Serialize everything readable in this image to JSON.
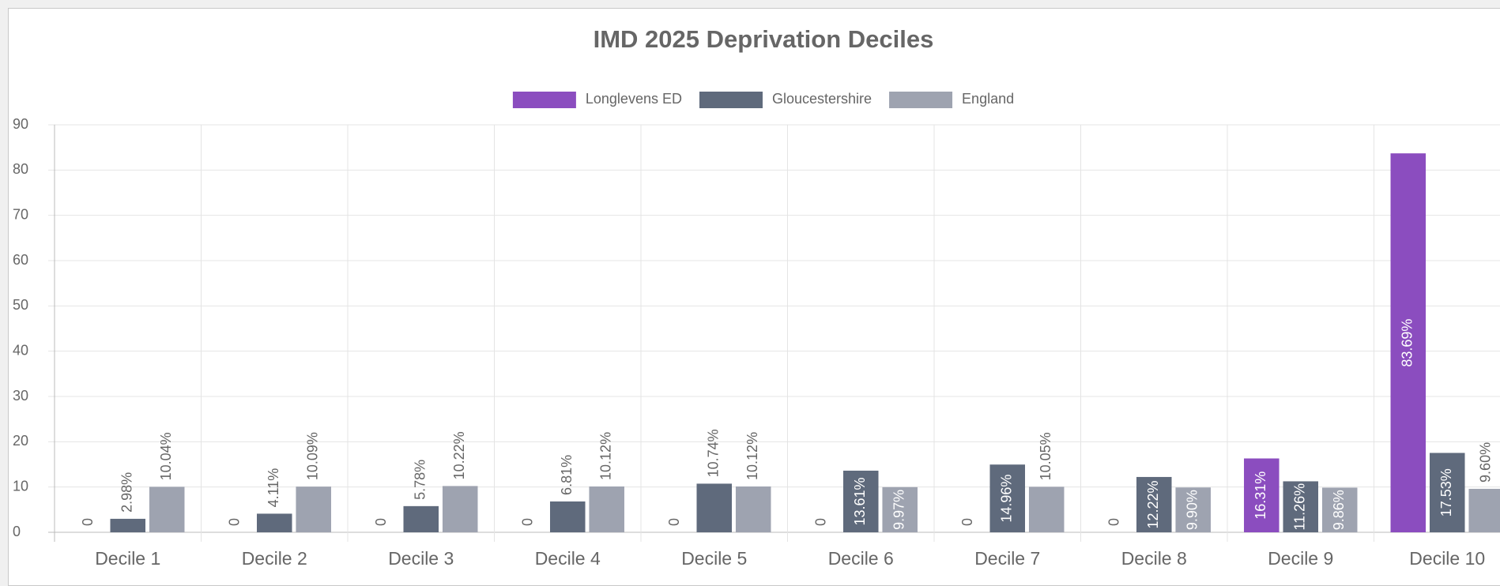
{
  "chart_data": {
    "type": "bar",
    "title": "IMD 2025 Deprivation Deciles",
    "categories": [
      "Decile 1",
      "Decile 2",
      "Decile 3",
      "Decile 4",
      "Decile 5",
      "Decile 6",
      "Decile 7",
      "Decile 8",
      "Decile 9",
      "Decile 10"
    ],
    "series": [
      {
        "name": "Longlevens ED",
        "color": "#8b4dbf",
        "values": [
          0,
          0,
          0,
          0,
          0,
          0,
          0,
          0,
          16.31,
          83.69
        ],
        "value_labels": [
          "0",
          "0",
          "0",
          "0",
          "0",
          "0",
          "0",
          "0",
          "16.31%",
          "83.69%"
        ]
      },
      {
        "name": "Gloucestershire",
        "color": "#5f6a7c",
        "values": [
          2.98,
          4.11,
          5.78,
          6.81,
          10.74,
          13.61,
          14.96,
          12.22,
          11.26,
          17.53
        ],
        "value_labels": [
          "2.98%",
          "4.11%",
          "5.78%",
          "6.81%",
          "10.74%",
          "13.61%",
          "14.96%",
          "12.22%",
          "11.26%",
          "17.53%"
        ]
      },
      {
        "name": "England",
        "color": "#9ea3b0",
        "values": [
          10.04,
          10.09,
          10.22,
          10.12,
          10.12,
          9.97,
          10.05,
          9.9,
          9.86,
          9.6
        ],
        "value_labels": [
          "10.04%",
          "10.09%",
          "10.22%",
          "10.12%",
          "10.12%",
          "9.97%",
          "10.05%",
          "9.90%",
          "9.86%",
          "9.60%"
        ]
      }
    ],
    "ylim": [
      0,
      90
    ],
    "yticks": [
      0,
      10,
      20,
      30,
      40,
      50,
      60,
      70,
      80,
      90
    ],
    "grid": true,
    "legend": "top"
  }
}
